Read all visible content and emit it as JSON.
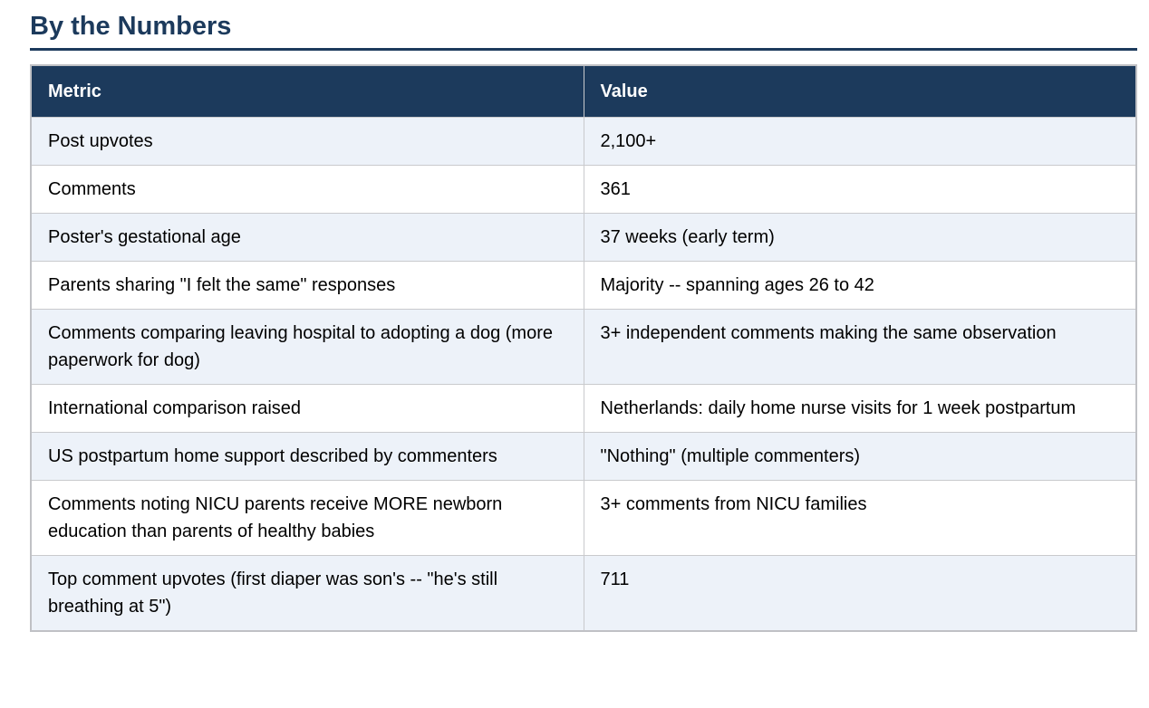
{
  "page": {
    "title": "By the Numbers"
  },
  "colors": {
    "accent_navy": "#1c3a5c",
    "row_alt_blue": "#edf2f9",
    "border_gray": "#c9cacd",
    "header_text": "#ffffff",
    "body_text": "#000000"
  },
  "table": {
    "columns": [
      "Metric",
      "Value"
    ],
    "rows": [
      {
        "metric": "Post upvotes",
        "value": "2,100+"
      },
      {
        "metric": "Comments",
        "value": "361"
      },
      {
        "metric": "Poster's gestational age",
        "value": "37 weeks (early term)"
      },
      {
        "metric": "Parents sharing \"I felt the same\" responses",
        "value": "Majority -- spanning ages 26 to 42"
      },
      {
        "metric": "Comments comparing leaving hospital to adopting a dog (more paperwork for dog)",
        "value": "3+ independent comments making the same observation"
      },
      {
        "metric": "International comparison raised",
        "value": "Netherlands: daily home nurse visits for 1 week postpartum"
      },
      {
        "metric": "US postpartum home support described by commenters",
        "value": "\"Nothing\" (multiple commenters)"
      },
      {
        "metric": "Comments noting NICU parents receive MORE newborn education than parents of healthy babies",
        "value": "3+ comments from NICU families"
      },
      {
        "metric": "Top comment upvotes (first diaper was son's -- \"he's still breathing at 5\")",
        "value": "711"
      }
    ]
  }
}
